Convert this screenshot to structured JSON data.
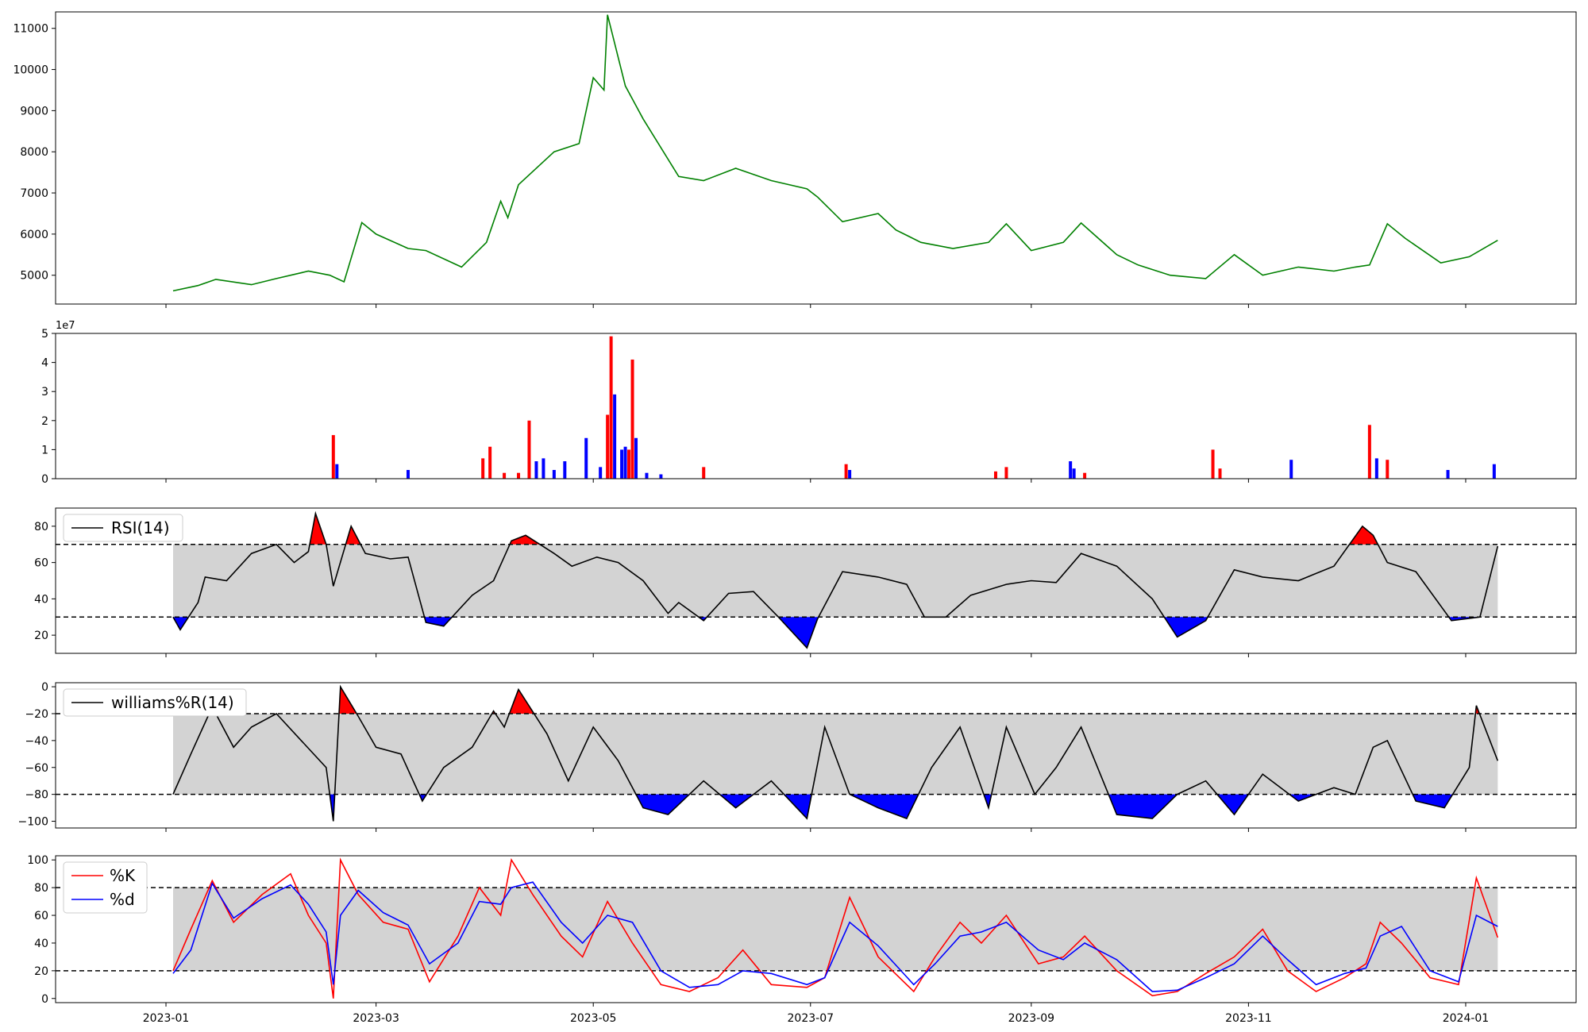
{
  "x_ticks": [
    "2023-01",
    "2023-03",
    "2023-05",
    "2023-07",
    "2023-09",
    "2023-11",
    "2024-01"
  ],
  "colors": {
    "price": "#008000",
    "up": "#ff0000",
    "down": "#0000ff",
    "band": "#d3d3d3",
    "line": "#000000"
  },
  "chart_data": [
    {
      "type": "line",
      "name_hint": "price",
      "ylim": [
        4300,
        11400
      ],
      "yticks": [
        5000,
        6000,
        7000,
        8000,
        9000,
        10000,
        11000
      ],
      "x": [
        "2023-01-03",
        "2023-01-10",
        "2023-01-15",
        "2023-01-25",
        "2023-02-01",
        "2023-02-10",
        "2023-02-16",
        "2023-02-20",
        "2023-02-25",
        "2023-03-01",
        "2023-03-10",
        "2023-03-15",
        "2023-03-25",
        "2023-04-01",
        "2023-04-05",
        "2023-04-07",
        "2023-04-10",
        "2023-04-20",
        "2023-04-27",
        "2023-05-01",
        "2023-05-04",
        "2023-05-05",
        "2023-05-10",
        "2023-05-15",
        "2023-05-25",
        "2023-06-01",
        "2023-06-10",
        "2023-06-20",
        "2023-06-30",
        "2023-07-03",
        "2023-07-10",
        "2023-07-20",
        "2023-07-25",
        "2023-08-01",
        "2023-08-10",
        "2023-08-20",
        "2023-08-25",
        "2023-09-01",
        "2023-09-10",
        "2023-09-15",
        "2023-09-25",
        "2023-10-01",
        "2023-10-10",
        "2023-10-20",
        "2023-10-28",
        "2023-11-05",
        "2023-11-15",
        "2023-11-25",
        "2023-12-01",
        "2023-12-05",
        "2023-12-10",
        "2023-12-15",
        "2023-12-25",
        "2024-01-02",
        "2024-01-10"
      ],
      "values": [
        4620,
        4750,
        4900,
        4770,
        4920,
        5100,
        5000,
        4840,
        6280,
        6000,
        5650,
        5600,
        5200,
        5800,
        6800,
        6400,
        7200,
        8000,
        8200,
        9800,
        9500,
        11330,
        9600,
        8800,
        7400,
        7300,
        7600,
        7300,
        7100,
        6900,
        6300,
        6500,
        6100,
        5800,
        5650,
        5800,
        6250,
        5600,
        5800,
        6270,
        5500,
        5250,
        5000,
        4920,
        5500,
        5000,
        5200,
        5100,
        5200,
        5250,
        6250,
        5900,
        5300,
        5450,
        5850
      ]
    },
    {
      "type": "bar",
      "name_hint": "volume",
      "scale_note": "1e7",
      "ylim": [
        0,
        5
      ],
      "yticks": [
        0,
        1,
        2,
        3,
        4,
        5
      ],
      "bars": [
        {
          "x": "2023-02-17",
          "v": 1.5,
          "up": true
        },
        {
          "x": "2023-02-18",
          "v": 0.5,
          "up": false
        },
        {
          "x": "2023-03-10",
          "v": 0.3,
          "up": false
        },
        {
          "x": "2023-03-31",
          "v": 0.7,
          "up": true
        },
        {
          "x": "2023-04-02",
          "v": 1.1,
          "up": true
        },
        {
          "x": "2023-04-06",
          "v": 0.2,
          "up": true
        },
        {
          "x": "2023-04-10",
          "v": 0.2,
          "up": true
        },
        {
          "x": "2023-04-13",
          "v": 2.0,
          "up": true
        },
        {
          "x": "2023-04-15",
          "v": 0.6,
          "up": false
        },
        {
          "x": "2023-04-17",
          "v": 0.7,
          "up": false
        },
        {
          "x": "2023-04-20",
          "v": 0.3,
          "up": false
        },
        {
          "x": "2023-04-23",
          "v": 0.6,
          "up": false
        },
        {
          "x": "2023-04-29",
          "v": 1.4,
          "up": false
        },
        {
          "x": "2023-05-03",
          "v": 0.4,
          "up": false
        },
        {
          "x": "2023-05-05",
          "v": 2.2,
          "up": true
        },
        {
          "x": "2023-05-06",
          "v": 4.9,
          "up": true
        },
        {
          "x": "2023-05-07",
          "v": 2.9,
          "up": false
        },
        {
          "x": "2023-05-09",
          "v": 1.0,
          "up": false
        },
        {
          "x": "2023-05-10",
          "v": 1.1,
          "up": false
        },
        {
          "x": "2023-05-11",
          "v": 1.0,
          "up": true
        },
        {
          "x": "2023-05-12",
          "v": 4.1,
          "up": true
        },
        {
          "x": "2023-05-13",
          "v": 1.4,
          "up": false
        },
        {
          "x": "2023-05-16",
          "v": 0.2,
          "up": false
        },
        {
          "x": "2023-05-20",
          "v": 0.15,
          "up": false
        },
        {
          "x": "2023-06-01",
          "v": 0.4,
          "up": true
        },
        {
          "x": "2023-07-11",
          "v": 0.5,
          "up": true
        },
        {
          "x": "2023-07-12",
          "v": 0.3,
          "up": false
        },
        {
          "x": "2023-08-22",
          "v": 0.25,
          "up": true
        },
        {
          "x": "2023-08-25",
          "v": 0.4,
          "up": true
        },
        {
          "x": "2023-09-12",
          "v": 0.6,
          "up": false
        },
        {
          "x": "2023-09-13",
          "v": 0.35,
          "up": false
        },
        {
          "x": "2023-09-16",
          "v": 0.2,
          "up": true
        },
        {
          "x": "2023-10-22",
          "v": 1.0,
          "up": true
        },
        {
          "x": "2023-10-24",
          "v": 0.35,
          "up": true
        },
        {
          "x": "2023-11-13",
          "v": 0.65,
          "up": false
        },
        {
          "x": "2023-12-05",
          "v": 1.85,
          "up": true
        },
        {
          "x": "2023-12-07",
          "v": 0.7,
          "up": false
        },
        {
          "x": "2023-12-10",
          "v": 0.65,
          "up": true
        },
        {
          "x": "2023-12-27",
          "v": 0.3,
          "up": false
        },
        {
          "x": "2024-01-09",
          "v": 0.5,
          "up": false
        }
      ]
    },
    {
      "type": "line",
      "name_hint": "rsi",
      "legend": [
        "RSI(14)"
      ],
      "ylim": [
        10,
        90
      ],
      "yticks": [
        20,
        40,
        60,
        80
      ],
      "upper": 70,
      "lower": 30,
      "x": [
        "2023-01-03",
        "2023-01-05",
        "2023-01-10",
        "2023-01-12",
        "2023-01-18",
        "2023-01-25",
        "2023-02-01",
        "2023-02-06",
        "2023-02-10",
        "2023-02-12",
        "2023-02-15",
        "2023-02-17",
        "2023-02-22",
        "2023-02-26",
        "2023-03-05",
        "2023-03-10",
        "2023-03-15",
        "2023-03-20",
        "2023-03-28",
        "2023-04-03",
        "2023-04-08",
        "2023-04-12",
        "2023-04-20",
        "2023-04-25",
        "2023-05-02",
        "2023-05-08",
        "2023-05-15",
        "2023-05-22",
        "2023-05-25",
        "2023-06-01",
        "2023-06-08",
        "2023-06-15",
        "2023-06-22",
        "2023-06-30",
        "2023-07-03",
        "2023-07-10",
        "2023-07-20",
        "2023-07-28",
        "2023-08-02",
        "2023-08-08",
        "2023-08-15",
        "2023-08-25",
        "2023-09-01",
        "2023-09-08",
        "2023-09-15",
        "2023-09-25",
        "2023-10-05",
        "2023-10-12",
        "2023-10-20",
        "2023-10-28",
        "2023-11-05",
        "2023-11-15",
        "2023-11-25",
        "2023-12-03",
        "2023-12-06",
        "2023-12-10",
        "2023-12-18",
        "2023-12-28",
        "2024-01-05",
        "2024-01-10"
      ],
      "values": [
        30,
        23,
        38,
        52,
        50,
        65,
        70,
        60,
        66,
        87,
        70,
        47,
        80,
        65,
        62,
        63,
        27,
        25,
        42,
        50,
        72,
        75,
        65,
        58,
        63,
        60,
        50,
        32,
        38,
        28,
        43,
        44,
        30,
        13,
        29,
        55,
        52,
        48,
        30,
        30,
        42,
        48,
        50,
        49,
        65,
        58,
        40,
        19,
        28,
        56,
        52,
        50,
        58,
        80,
        75,
        60,
        55,
        28,
        30,
        69
      ]
    },
    {
      "type": "line",
      "name_hint": "williams",
      "legend": [
        "williams%R(14)"
      ],
      "ylim": [
        -105,
        3
      ],
      "yticks": [
        0,
        -20,
        -40,
        -60,
        -80,
        -100
      ],
      "upper": -20,
      "lower": -80,
      "x": [
        "2023-01-03",
        "2023-01-08",
        "2023-01-14",
        "2023-01-20",
        "2023-01-25",
        "2023-02-01",
        "2023-02-08",
        "2023-02-15",
        "2023-02-17",
        "2023-02-19",
        "2023-02-24",
        "2023-03-01",
        "2023-03-08",
        "2023-03-14",
        "2023-03-20",
        "2023-03-28",
        "2023-04-03",
        "2023-04-06",
        "2023-04-10",
        "2023-04-18",
        "2023-04-24",
        "2023-05-01",
        "2023-05-08",
        "2023-05-15",
        "2023-05-22",
        "2023-06-01",
        "2023-06-10",
        "2023-06-20",
        "2023-06-30",
        "2023-07-05",
        "2023-07-12",
        "2023-07-20",
        "2023-07-28",
        "2023-08-04",
        "2023-08-12",
        "2023-08-20",
        "2023-08-25",
        "2023-09-02",
        "2023-09-08",
        "2023-09-15",
        "2023-09-25",
        "2023-10-05",
        "2023-10-12",
        "2023-10-20",
        "2023-10-28",
        "2023-11-05",
        "2023-11-15",
        "2023-11-25",
        "2023-12-01",
        "2023-12-06",
        "2023-12-10",
        "2023-12-18",
        "2023-12-26",
        "2024-01-02",
        "2024-01-04",
        "2024-01-10"
      ],
      "values": [
        -80,
        -50,
        -15,
        -45,
        -30,
        -20,
        -40,
        -60,
        -100,
        0,
        -22,
        -45,
        -50,
        -85,
        -60,
        -45,
        -18,
        -30,
        -2,
        -35,
        -70,
        -30,
        -55,
        -90,
        -95,
        -70,
        -90,
        -70,
        -98,
        -30,
        -80,
        -90,
        -98,
        -60,
        -30,
        -90,
        -30,
        -80,
        -60,
        -30,
        -95,
        -98,
        -80,
        -70,
        -95,
        -65,
        -85,
        -75,
        -80,
        -45,
        -40,
        -85,
        -90,
        -60,
        -14,
        -55
      ]
    },
    {
      "type": "line",
      "name_hint": "stochastic",
      "legend": [
        "%K",
        "%d"
      ],
      "ylim": [
        -3,
        103
      ],
      "yticks": [
        0,
        20,
        40,
        60,
        80,
        100
      ],
      "upper": 80,
      "lower": 20,
      "x": [
        "2023-01-03",
        "2023-01-08",
        "2023-01-14",
        "2023-01-20",
        "2023-01-28",
        "2023-02-05",
        "2023-02-10",
        "2023-02-15",
        "2023-02-17",
        "2023-02-19",
        "2023-02-24",
        "2023-03-03",
        "2023-03-10",
        "2023-03-16",
        "2023-03-24",
        "2023-03-30",
        "2023-04-05",
        "2023-04-08",
        "2023-04-14",
        "2023-04-22",
        "2023-04-28",
        "2023-05-05",
        "2023-05-12",
        "2023-05-20",
        "2023-05-28",
        "2023-06-05",
        "2023-06-12",
        "2023-06-20",
        "2023-06-30",
        "2023-07-05",
        "2023-07-12",
        "2023-07-20",
        "2023-07-30",
        "2023-08-05",
        "2023-08-12",
        "2023-08-18",
        "2023-08-25",
        "2023-09-03",
        "2023-09-10",
        "2023-09-16",
        "2023-09-25",
        "2023-10-05",
        "2023-10-12",
        "2023-10-20",
        "2023-10-28",
        "2023-11-05",
        "2023-11-12",
        "2023-11-20",
        "2023-11-28",
        "2023-12-04",
        "2023-12-08",
        "2023-12-14",
        "2023-12-22",
        "2023-12-30",
        "2024-01-04",
        "2024-01-10"
      ],
      "k": [
        20,
        50,
        85,
        55,
        75,
        90,
        60,
        40,
        0,
        100,
        75,
        55,
        50,
        12,
        45,
        80,
        60,
        100,
        75,
        45,
        30,
        70,
        40,
        10,
        5,
        15,
        35,
        10,
        8,
        15,
        73,
        30,
        5,
        30,
        55,
        40,
        60,
        25,
        30,
        45,
        20,
        2,
        5,
        18,
        30,
        50,
        20,
        5,
        15,
        25,
        55,
        40,
        15,
        10,
        87,
        44
      ],
      "d": [
        18,
        35,
        83,
        58,
        72,
        82,
        68,
        48,
        10,
        60,
        78,
        62,
        53,
        25,
        40,
        70,
        68,
        80,
        84,
        55,
        40,
        60,
        55,
        20,
        8,
        10,
        20,
        18,
        10,
        15,
        55,
        38,
        10,
        25,
        45,
        48,
        55,
        35,
        28,
        40,
        28,
        5,
        6,
        15,
        25,
        45,
        28,
        10,
        18,
        22,
        45,
        52,
        20,
        12,
        60,
        52
      ]
    }
  ]
}
